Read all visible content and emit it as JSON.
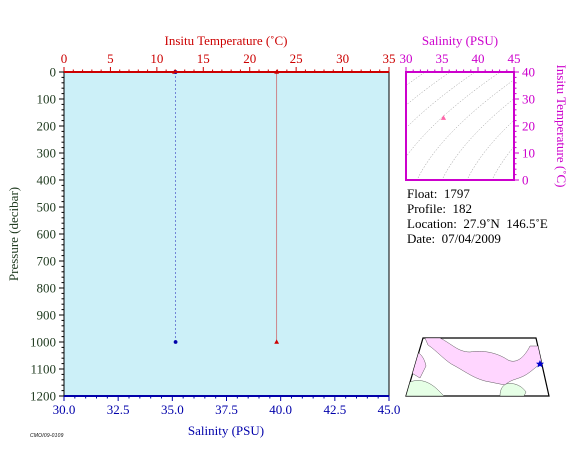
{
  "colors": {
    "temperature": "#cc0000",
    "salinity": "#0000aa",
    "inset": "#cc00cc",
    "plot_bg": "#ccf0f8",
    "axis_text": "#1f3a1f",
    "land": "#ffd6ff",
    "land_alt": "#e6ffe6"
  },
  "main_plot": {
    "temp_axis_title": "Insitu Temperature (˚C)",
    "pressure_axis_title": "Pressure (decibar)",
    "salinity_axis_title": "Salinity (PSU)"
  },
  "inset_plot": {
    "salinity_axis_title": "Salinity (PSU)",
    "temp_axis_title": "Insitu Temperature (˚C)"
  },
  "info": {
    "float_line": "Float:  1797",
    "profile_line": "Profile:  182",
    "location_line": "Location:  27.9˚N  146.5˚E",
    "date_line": "Date:  07/04/2009"
  },
  "footer_tag": "CMOI09-0109",
  "chart_data": [
    {
      "type": "scatter",
      "name_ref": "main-profile",
      "x_axes": {
        "temperature": {
          "label": "Insitu Temperature (˚C)",
          "range": [
            0,
            35
          ],
          "ticks": [
            0,
            5,
            10,
            15,
            20,
            25,
            30,
            35
          ],
          "position": "top"
        },
        "salinity": {
          "label": "Salinity (PSU)",
          "range": [
            30,
            45
          ],
          "ticks": [
            30.0,
            32.5,
            35.0,
            37.5,
            40.0,
            42.5,
            45.0
          ],
          "position": "bottom"
        }
      },
      "y_axis": {
        "label": "Pressure (decibar)",
        "range": [
          0,
          1200
        ],
        "inverted": true,
        "ticks": [
          0,
          100,
          200,
          300,
          400,
          500,
          600,
          700,
          800,
          900,
          1000,
          1100,
          1200
        ]
      },
      "series": [
        {
          "axis": "temperature",
          "points": [
            {
              "value": 22.9,
              "pressure": 0
            },
            {
              "value": 22.9,
              "pressure": 1000
            }
          ]
        },
        {
          "axis": "temperature",
          "points": [
            {
              "value": 11.9,
              "pressure": 0
            }
          ]
        },
        {
          "axis": "salinity",
          "points": [
            {
              "value": 35.15,
              "pressure": 0
            },
            {
              "value": 35.15,
              "pressure": 1000
            }
          ]
        }
      ],
      "grid": false
    },
    {
      "type": "scatter",
      "name_ref": "ts-inset",
      "x_axis": {
        "label": "Salinity (PSU)",
        "range": [
          30,
          45
        ],
        "ticks": [
          30,
          35,
          40,
          45
        ],
        "position": "top"
      },
      "y_axis": {
        "label": "Insitu Temperature (˚C)",
        "range": [
          0,
          40
        ],
        "ticks": [
          0,
          10,
          20,
          30,
          40
        ],
        "position": "right"
      },
      "points": [
        {
          "salinity": 35.2,
          "temperature": 23
        }
      ],
      "density_contours": true
    }
  ]
}
